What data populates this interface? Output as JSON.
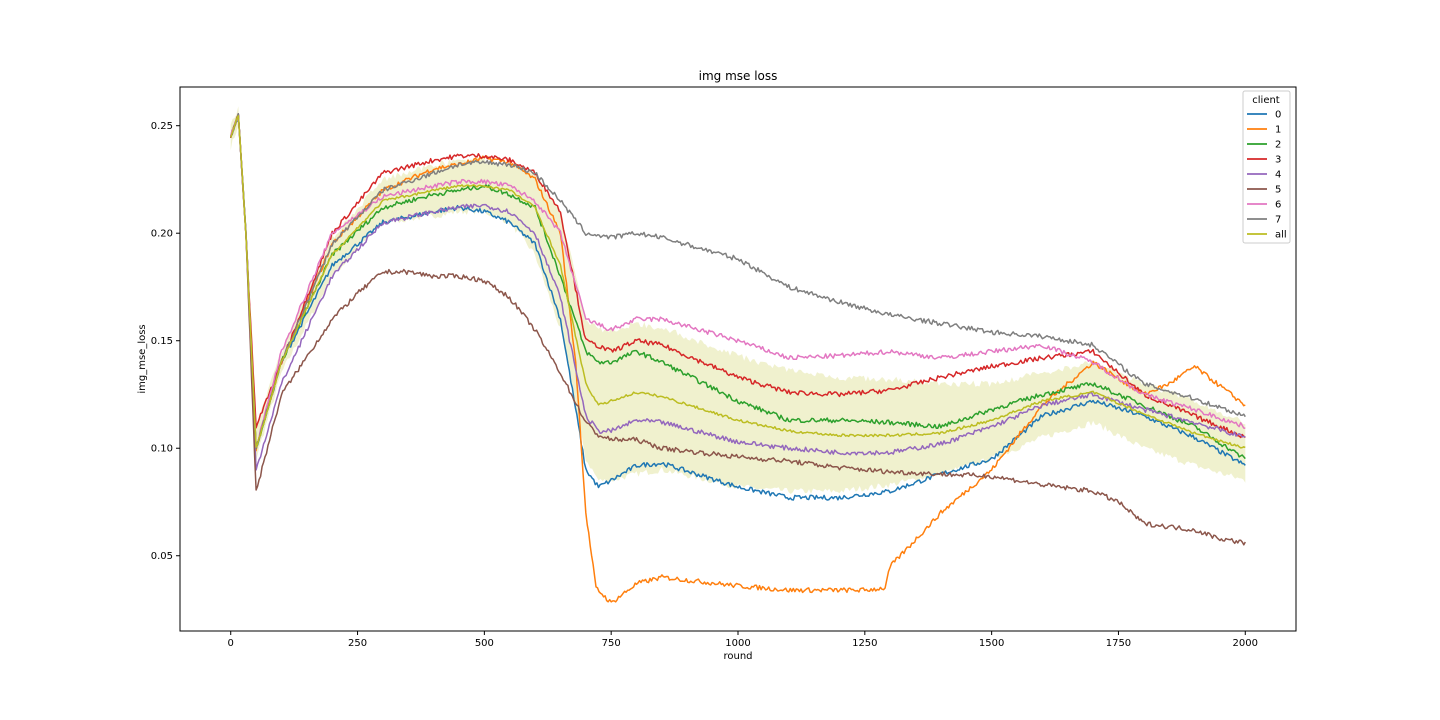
{
  "chart_data": {
    "type": "line",
    "title": "img mse loss",
    "xlabel": "round",
    "ylabel": "img_mse_loss",
    "xlim": [
      -100,
      2100
    ],
    "ylim": [
      0.015,
      0.268
    ],
    "xticks": [
      0,
      250,
      500,
      750,
      1000,
      1250,
      1500,
      1750,
      2000
    ],
    "yticks": [
      0.05,
      0.1,
      0.15,
      0.2,
      0.25
    ],
    "ytick_labels": [
      "0.05",
      "0.10",
      "0.15",
      "0.20",
      "0.25"
    ],
    "grid": false,
    "legend": {
      "title": "client",
      "placement": "top-right"
    },
    "series": [
      {
        "name": "0",
        "color": "#1f77b4",
        "x": [
          0,
          15,
          30,
          50,
          100,
          200,
          300,
          400,
          450,
          500,
          550,
          600,
          650,
          700,
          725,
          750,
          800,
          850,
          1000,
          1100,
          1200,
          1300,
          1400,
          1500,
          1600,
          1700,
          1800,
          1900,
          2000
        ],
        "y": [
          0.245,
          0.255,
          0.2,
          0.1,
          0.14,
          0.185,
          0.205,
          0.21,
          0.212,
          0.21,
          0.205,
          0.195,
          0.16,
          0.09,
          0.082,
          0.085,
          0.092,
          0.093,
          0.082,
          0.077,
          0.077,
          0.08,
          0.088,
          0.095,
          0.115,
          0.122,
          0.115,
          0.105,
          0.092
        ]
      },
      {
        "name": "1",
        "color": "#ff7f0e",
        "x": [
          0,
          15,
          30,
          50,
          100,
          200,
          300,
          400,
          450,
          500,
          550,
          600,
          650,
          680,
          700,
          720,
          750,
          800,
          850,
          1000,
          1100,
          1200,
          1250,
          1290,
          1300,
          1400,
          1500,
          1550,
          1600,
          1700,
          1800,
          1850,
          1900,
          2000
        ],
        "y": [
          0.245,
          0.255,
          0.2,
          0.1,
          0.14,
          0.195,
          0.22,
          0.23,
          0.232,
          0.235,
          0.233,
          0.225,
          0.2,
          0.14,
          0.07,
          0.035,
          0.028,
          0.037,
          0.04,
          0.036,
          0.034,
          0.034,
          0.034,
          0.035,
          0.045,
          0.07,
          0.09,
          0.105,
          0.12,
          0.14,
          0.125,
          0.13,
          0.138,
          0.12
        ]
      },
      {
        "name": "2",
        "color": "#2ca02c",
        "x": [
          0,
          15,
          30,
          50,
          100,
          200,
          300,
          400,
          450,
          500,
          550,
          600,
          650,
          700,
          725,
          750,
          800,
          850,
          1000,
          1100,
          1200,
          1300,
          1400,
          1500,
          1600,
          1700,
          1800,
          1900,
          2000
        ],
        "y": [
          0.245,
          0.255,
          0.2,
          0.1,
          0.14,
          0.19,
          0.212,
          0.218,
          0.22,
          0.222,
          0.218,
          0.212,
          0.18,
          0.145,
          0.14,
          0.14,
          0.145,
          0.14,
          0.122,
          0.113,
          0.113,
          0.112,
          0.11,
          0.118,
          0.125,
          0.13,
          0.12,
          0.11,
          0.095
        ]
      },
      {
        "name": "3",
        "color": "#d62728",
        "x": [
          0,
          15,
          30,
          50,
          100,
          200,
          300,
          400,
          450,
          500,
          550,
          600,
          650,
          700,
          750,
          800,
          850,
          1000,
          1100,
          1200,
          1300,
          1400,
          1500,
          1600,
          1700,
          1800,
          1900,
          2000
        ],
        "y": [
          0.245,
          0.255,
          0.2,
          0.11,
          0.14,
          0.2,
          0.228,
          0.234,
          0.236,
          0.236,
          0.234,
          0.228,
          0.21,
          0.15,
          0.145,
          0.15,
          0.148,
          0.133,
          0.126,
          0.125,
          0.127,
          0.133,
          0.138,
          0.142,
          0.145,
          0.125,
          0.115,
          0.105
        ]
      },
      {
        "name": "4",
        "color": "#9467bd",
        "x": [
          0,
          15,
          30,
          50,
          100,
          200,
          300,
          400,
          450,
          500,
          550,
          600,
          650,
          700,
          725,
          750,
          800,
          850,
          1000,
          1100,
          1200,
          1300,
          1400,
          1500,
          1600,
          1700,
          1800,
          1900,
          2000
        ],
        "y": [
          0.245,
          0.255,
          0.2,
          0.09,
          0.13,
          0.18,
          0.205,
          0.21,
          0.212,
          0.213,
          0.21,
          0.2,
          0.17,
          0.115,
          0.108,
          0.108,
          0.113,
          0.112,
          0.103,
          0.1,
          0.098,
          0.098,
          0.102,
          0.11,
          0.12,
          0.125,
          0.118,
          0.112,
          0.105
        ]
      },
      {
        "name": "5",
        "color": "#8c564b",
        "x": [
          0,
          15,
          30,
          50,
          100,
          200,
          250,
          300,
          350,
          400,
          450,
          500,
          550,
          600,
          650,
          700,
          725,
          750,
          800,
          850,
          1000,
          1100,
          1200,
          1300,
          1400,
          1500,
          1600,
          1700,
          1750,
          1800,
          1900,
          1950,
          2000
        ],
        "y": [
          0.245,
          0.255,
          0.2,
          0.08,
          0.125,
          0.16,
          0.172,
          0.182,
          0.182,
          0.18,
          0.18,
          0.178,
          0.17,
          0.155,
          0.135,
          0.112,
          0.106,
          0.104,
          0.104,
          0.1,
          0.096,
          0.094,
          0.091,
          0.089,
          0.088,
          0.087,
          0.083,
          0.08,
          0.075,
          0.065,
          0.062,
          0.058,
          0.056
        ]
      },
      {
        "name": "6",
        "color": "#e377c2",
        "x": [
          0,
          15,
          30,
          50,
          100,
          200,
          300,
          400,
          450,
          500,
          550,
          600,
          650,
          700,
          750,
          800,
          850,
          1000,
          1100,
          1200,
          1300,
          1400,
          1500,
          1600,
          1700,
          1800,
          1900,
          2000
        ],
        "y": [
          0.245,
          0.255,
          0.2,
          0.1,
          0.145,
          0.2,
          0.217,
          0.222,
          0.224,
          0.224,
          0.222,
          0.215,
          0.2,
          0.16,
          0.155,
          0.16,
          0.16,
          0.15,
          0.142,
          0.143,
          0.145,
          0.142,
          0.145,
          0.148,
          0.14,
          0.125,
          0.118,
          0.11
        ]
      },
      {
        "name": "7",
        "color": "#7f7f7f",
        "x": [
          0,
          15,
          30,
          50,
          100,
          200,
          300,
          400,
          450,
          500,
          550,
          600,
          650,
          700,
          750,
          800,
          850,
          1000,
          1100,
          1200,
          1300,
          1400,
          1500,
          1600,
          1700,
          1800,
          1900,
          2000
        ],
        "y": [
          0.245,
          0.255,
          0.2,
          0.1,
          0.14,
          0.195,
          0.22,
          0.228,
          0.232,
          0.233,
          0.232,
          0.228,
          0.215,
          0.2,
          0.198,
          0.2,
          0.198,
          0.188,
          0.175,
          0.168,
          0.162,
          0.158,
          0.154,
          0.152,
          0.148,
          0.13,
          0.123,
          0.115
        ]
      },
      {
        "name": "all",
        "color": "#bcbd22",
        "x": [
          0,
          15,
          30,
          50,
          100,
          200,
          300,
          400,
          450,
          500,
          550,
          600,
          650,
          700,
          725,
          750,
          800,
          850,
          1000,
          1100,
          1200,
          1300,
          1400,
          1500,
          1600,
          1700,
          1800,
          1900,
          2000
        ],
        "y": [
          0.245,
          0.255,
          0.2,
          0.1,
          0.14,
          0.19,
          0.215,
          0.22,
          0.222,
          0.222,
          0.22,
          0.212,
          0.185,
          0.13,
          0.12,
          0.122,
          0.126,
          0.124,
          0.113,
          0.108,
          0.106,
          0.106,
          0.107,
          0.113,
          0.122,
          0.126,
          0.116,
          0.107,
          0.1
        ],
        "band_low": [
          0.24,
          0.25,
          0.195,
          0.095,
          0.135,
          0.18,
          0.205,
          0.208,
          0.21,
          0.21,
          0.205,
          0.19,
          0.155,
          0.095,
          0.085,
          0.085,
          0.088,
          0.09,
          0.082,
          0.08,
          0.08,
          0.083,
          0.088,
          0.095,
          0.105,
          0.112,
          0.1,
          0.092,
          0.085
        ],
        "band_high": [
          0.25,
          0.258,
          0.205,
          0.11,
          0.145,
          0.198,
          0.225,
          0.232,
          0.234,
          0.234,
          0.232,
          0.228,
          0.21,
          0.16,
          0.155,
          0.155,
          0.158,
          0.156,
          0.143,
          0.136,
          0.133,
          0.132,
          0.13,
          0.13,
          0.135,
          0.14,
          0.13,
          0.122,
          0.112
        ]
      }
    ]
  }
}
